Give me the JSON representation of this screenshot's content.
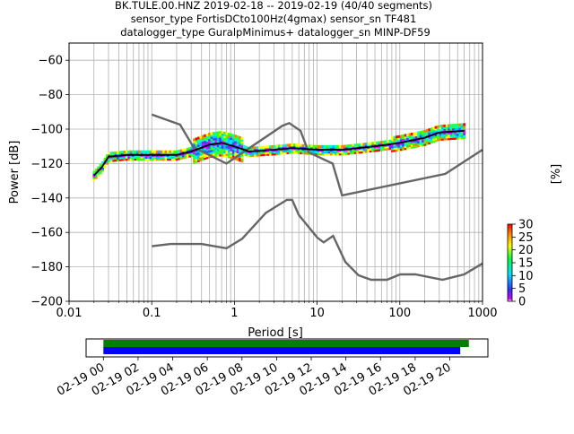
{
  "title_lines": [
    "BK.TULE.00.HNZ   2019-02-18 -- 2019-02-19  (40/40 segments)",
    "sensor_type FortisDCto100Hz(4gmax) sensor_sn TF481",
    "datalogger_type GuralpMinimus+ datalogger_sn MINP-DF59"
  ],
  "colors": {
    "mean_curve": "#000000",
    "noise_models": "#666666",
    "grid": "#b0b0b0",
    "segments_green": "#008000",
    "segments_blue": "#0000ff"
  },
  "chart_data": [
    {
      "type": "heatmap",
      "xlabel": "Period [s]",
      "ylabel": "Power [dB]",
      "x_scale": "log",
      "xlim": [
        0.01,
        1000
      ],
      "ylim": [
        -200,
        -50
      ],
      "x_ticks": [
        0.01,
        0.1,
        1,
        10,
        100,
        1000
      ],
      "x_tick_labels": [
        "0.01",
        "0.1",
        "1",
        "10",
        "100",
        "1000"
      ],
      "y_ticks": [
        -200,
        -180,
        -160,
        -140,
        -120,
        -100,
        -80,
        -60
      ],
      "y_tick_labels": [
        "−200",
        "−180",
        "−160",
        "−140",
        "−120",
        "−100",
        "−80",
        "−60"
      ],
      "grid": true,
      "colorbar": {
        "label": "[%]",
        "min": 0,
        "max": 30,
        "ticks": [
          0,
          5,
          10,
          15,
          20,
          25,
          30
        ],
        "tick_labels": [
          "0",
          "5",
          "10",
          "15",
          "20",
          "25",
          "30"
        ]
      },
      "series": [
        {
          "role": "mean",
          "x": [
            0.02,
            0.025,
            0.03,
            0.05,
            0.1,
            0.2,
            0.3,
            0.5,
            0.7,
            1,
            1.5,
            3,
            5,
            10,
            20,
            50,
            100,
            200,
            300,
            600
          ],
          "y": [
            -127,
            -122,
            -116,
            -115,
            -115,
            -115,
            -113,
            -109,
            -108,
            -110,
            -113,
            -112,
            -111,
            -112,
            -112,
            -110,
            -108,
            -105,
            -102,
            -101
          ]
        },
        {
          "role": "noise-model-high",
          "x": [
            0.1,
            0.22,
            0.32,
            0.8,
            3.8,
            4.6,
            6.3,
            7.9,
            15.4,
            20,
            354.8,
            1000
          ],
          "y": [
            -91.5,
            -97.4,
            -110.5,
            -120,
            -98,
            -96.5,
            -101,
            -113.5,
            -120,
            -138.5,
            -126,
            -112
          ]
        },
        {
          "role": "noise-model-low",
          "x": [
            0.1,
            0.17,
            0.4,
            0.8,
            1.24,
            2.4,
            4.3,
            5,
            6,
            10,
            12,
            15.6,
            21.9,
            31.6,
            45,
            70,
            101,
            154,
            328,
            600,
            1000
          ],
          "y": [
            -168,
            -166.7,
            -166.7,
            -169.2,
            -163.7,
            -148.6,
            -141.1,
            -141.1,
            -149.8,
            -162.9,
            -165.8,
            -162,
            -177.1,
            -184.9,
            -187.5,
            -187.5,
            -184.4,
            -184.4,
            -187.5,
            -184.4,
            -178
          ]
        }
      ]
    },
    {
      "type": "timeline",
      "x_tick_labels": [
        "02-19 00",
        "02-19 02",
        "02-19 04",
        "02-19 06",
        "02-19 08",
        "02-19 10",
        "02-19 12",
        "02-19 14",
        "02-19 16",
        "02-19 18",
        "02-19 20"
      ],
      "bars": [
        {
          "color": "#008000",
          "start_hour": 0,
          "end_hour": 21.1
        },
        {
          "color": "#0000ff",
          "start_hour": 0,
          "end_hour": 20.6
        }
      ],
      "xlim_hours": [
        -1,
        22.2
      ]
    }
  ]
}
